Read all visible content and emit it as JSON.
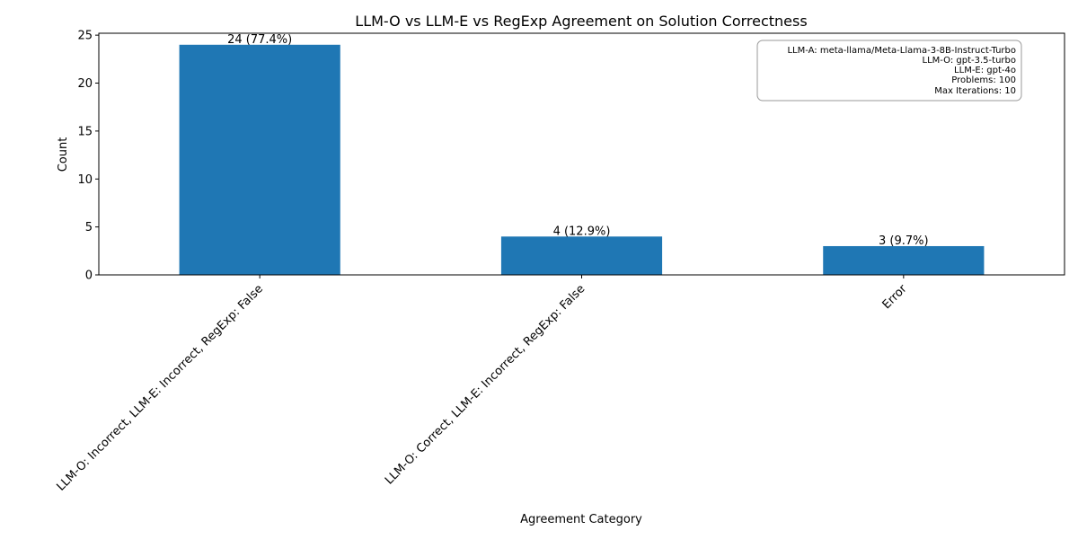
{
  "chart_data": {
    "type": "bar",
    "title": "LLM-O vs LLM-E vs RegExp Agreement on Solution Correctness",
    "xlabel": "Agreement Category",
    "ylabel": "Count",
    "categories": [
      "LLM-O: Incorrect, LLM-E: Incorrect, RegExp: False",
      "LLM-O: Correct, LLM-E: Incorrect, RegExp: False",
      "Error"
    ],
    "values": [
      24,
      4,
      3
    ],
    "data_labels": [
      "24 (77.4%)",
      "4 (12.9%)",
      "3 (9.7%)"
    ],
    "ylim": [
      0,
      25.2
    ],
    "yticks": [
      0,
      5,
      10,
      15,
      20,
      25
    ],
    "grid": false,
    "bar_color": "#1f77b4",
    "info_box": {
      "placement": "top-right",
      "lines": [
        "LLM-A: meta-llama/Meta-Llama-3-8B-Instruct-Turbo",
        "LLM-O: gpt-3.5-turbo",
        "LLM-E: gpt-4o",
        "Problems: 100",
        "Max Iterations: 10"
      ]
    }
  }
}
